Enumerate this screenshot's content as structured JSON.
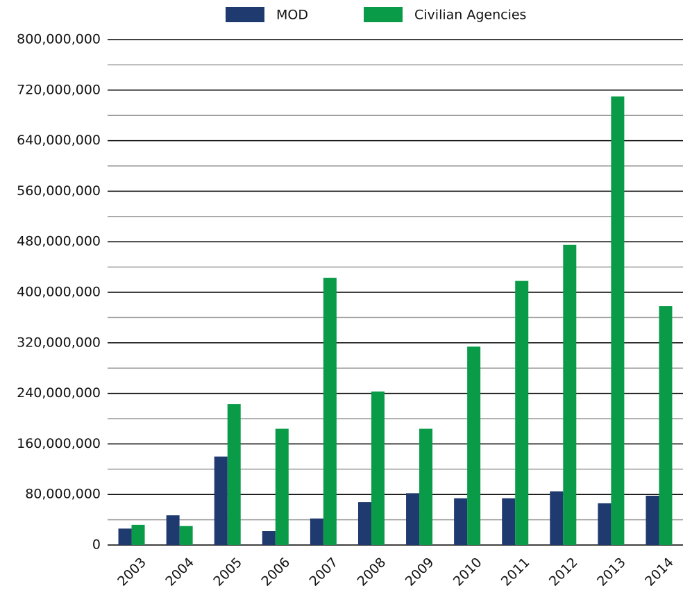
{
  "chart_data": {
    "type": "bar",
    "categories": [
      "2003",
      "2004",
      "2005",
      "2006",
      "2007",
      "2008",
      "2009",
      "2010",
      "2011",
      "2012",
      "2013",
      "2014"
    ],
    "series": [
      {
        "name": "MOD",
        "color": "#1f3a6e",
        "values": [
          26000000,
          47000000,
          140000000,
          22000000,
          42000000,
          68000000,
          82000000,
          74000000,
          74000000,
          85000000,
          66000000,
          78000000
        ]
      },
      {
        "name": "Civilian Agencies",
        "color": "#0a9b48",
        "values": [
          32000000,
          30000000,
          223000000,
          184000000,
          423000000,
          243000000,
          184000000,
          314000000,
          418000000,
          475000000,
          710000000,
          378000000
        ]
      }
    ],
    "ylim": [
      0,
      800000000
    ],
    "yticks": [
      0,
      {
        "value": 80000000,
        "label": "80,000,000"
      },
      {
        "value": 160000000,
        "label": "160,000,000"
      },
      {
        "value": 240000000,
        "label": "240,000,000"
      },
      {
        "value": 320000000,
        "label": "320,000,000"
      },
      {
        "value": 400000000,
        "label": "400,000,000"
      },
      {
        "value": 480000000,
        "label": "480,000,000"
      },
      {
        "value": 560000000,
        "label": "560,000,000"
      },
      {
        "value": 640000000,
        "label": "640,000,000"
      },
      {
        "value": 720000000,
        "label": "720,000,000"
      },
      {
        "value": 800000000,
        "label": "800,000,000"
      }
    ],
    "minor_yticks": [
      40000000,
      120000000,
      200000000,
      280000000,
      360000000,
      440000000,
      520000000,
      600000000,
      680000000,
      760000000
    ],
    "grid": true,
    "legend": "top"
  }
}
